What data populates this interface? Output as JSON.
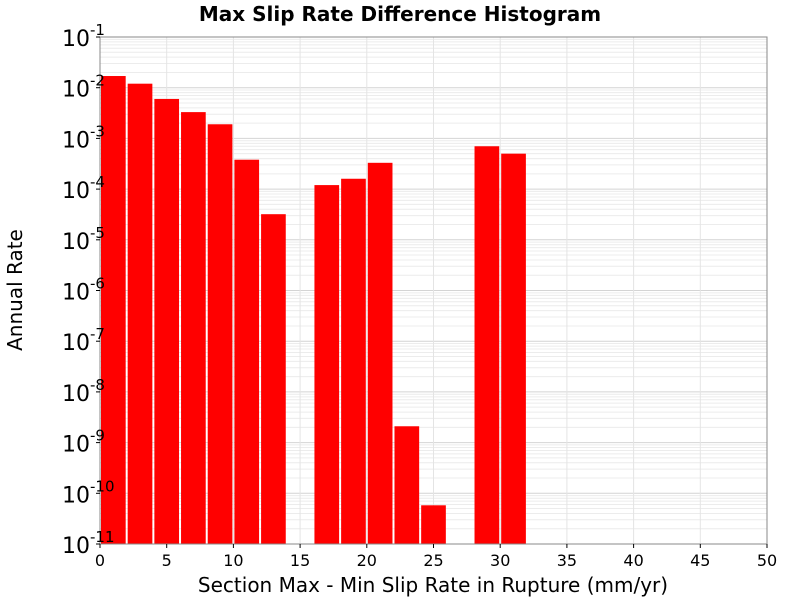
{
  "chart_data": {
    "type": "bar",
    "title": "Max Slip Rate Difference Histogram",
    "xlabel": "Section Max - Min Slip Rate in Rupture (mm/yr)",
    "ylabel": "Annual Rate",
    "xlim": [
      0,
      50
    ],
    "ylim_exponent": [
      -11,
      -1
    ],
    "yscale": "log",
    "bar_width": 2,
    "bar_color": "#ff0000",
    "grid": true,
    "x_ticks": [
      0,
      5,
      10,
      15,
      20,
      25,
      30,
      35,
      40,
      45,
      50
    ],
    "y_tick_exponents": [
      -1,
      -2,
      -3,
      -4,
      -5,
      -6,
      -7,
      -8,
      -9,
      -10,
      -11
    ],
    "y_tick_base": "10",
    "x": [
      1,
      3,
      5,
      7,
      9,
      11,
      13,
      15,
      17,
      19,
      21,
      23,
      25,
      27,
      29,
      31
    ],
    "values": [
      0.017,
      0.012,
      0.006,
      0.0033,
      0.0019,
      0.00038,
      3.2e-05,
      null,
      0.00012,
      0.00016,
      0.00033,
      2.1e-09,
      5.8e-11,
      null,
      0.0007,
      0.0005
    ]
  }
}
